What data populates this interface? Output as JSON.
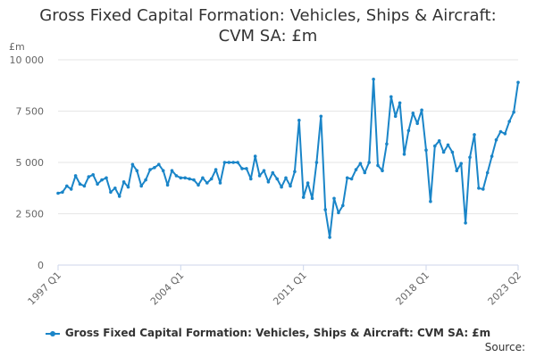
{
  "chart_data": {
    "type": "line",
    "title_line1": "Gross Fixed Capital Formation: Vehicles, Ships & Aircraft:",
    "title_line2": "CVM SA: £m",
    "ylabel_unit": "£m",
    "ylim": [
      0,
      10000
    ],
    "yticks": [
      0,
      2500,
      5000,
      7500,
      10000
    ],
    "ytick_labels": [
      "0",
      "2 500",
      "5 000",
      "7 500",
      "10 000"
    ],
    "xtick_labels": [
      "1997 Q1",
      "2004 Q1",
      "2011 Q1",
      "2018 Q1",
      "2023 Q2"
    ],
    "xtick_indices": [
      0,
      28,
      56,
      84,
      105
    ],
    "grid": true,
    "legend_position": "bottom",
    "color": "#1a85c8",
    "series": [
      {
        "name": "Gross Fixed Capital Formation: Vehicles, Ships & Aircraft: CVM SA: £m",
        "values": [
          3500,
          3550,
          3850,
          3700,
          4350,
          3950,
          3850,
          4300,
          4400,
          3950,
          4150,
          4250,
          3550,
          3750,
          3350,
          4050,
          3800,
          4900,
          4600,
          3850,
          4150,
          4650,
          4750,
          4900,
          4600,
          3900,
          4600,
          4350,
          4250,
          4250,
          4200,
          4150,
          3900,
          4250,
          4000,
          4200,
          4650,
          4000,
          5000,
          5000,
          5000,
          5000,
          4700,
          4700,
          4200,
          5300,
          4350,
          4600,
          4050,
          4500,
          4200,
          3800,
          4250,
          3850,
          4550,
          7050,
          3300,
          4000,
          3250,
          5000,
          7250,
          2700,
          1350,
          3250,
          2550,
          2900,
          4250,
          4200,
          4650,
          4950,
          4500,
          5000,
          9050,
          4850,
          4600,
          5900,
          8200,
          7250,
          7900,
          5400,
          6550,
          7400,
          6900,
          7550,
          5600,
          3100,
          5800,
          6050,
          5500,
          5850,
          5500,
          4600,
          4950,
          2050,
          5250,
          6350,
          3750,
          3700,
          4500,
          5300,
          6100,
          6500,
          6400,
          7000,
          7450,
          8900
        ]
      }
    ]
  },
  "footer": {
    "source_label": "Source:"
  }
}
